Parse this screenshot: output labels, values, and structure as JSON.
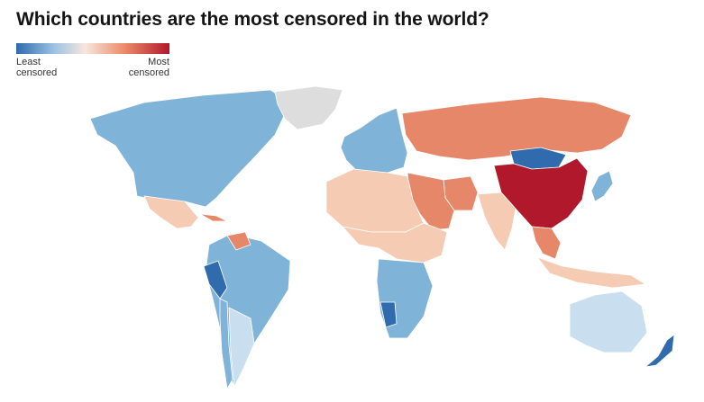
{
  "title": "Which countries are the most censored in the world?",
  "legend": {
    "low_label": "Least\ncensored",
    "high_label": "Most\ncensored",
    "colors": [
      "#2f6bad",
      "#9cc3e4",
      "#f7e6de",
      "#ec8d6b",
      "#b2182b"
    ]
  },
  "colors": {
    "very_low": "#2f6bad",
    "low": "#80b3d8",
    "low_light": "#c9dff0",
    "neutral_light": "#f5cbb4",
    "medium": "#e6876a",
    "high": "#b2182b",
    "no_data": "#dddddd"
  },
  "regions": [
    {
      "name": "North America",
      "level": "low"
    },
    {
      "name": "Greenland",
      "level": "no_data"
    },
    {
      "name": "Mexico",
      "level": "neutral_light"
    },
    {
      "name": "Cuba",
      "level": "medium"
    },
    {
      "name": "Venezuela",
      "level": "medium"
    },
    {
      "name": "South America",
      "level": "low"
    },
    {
      "name": "Peru",
      "level": "very_low"
    },
    {
      "name": "Chile",
      "level": "low"
    },
    {
      "name": "Argentina",
      "level": "low_light"
    },
    {
      "name": "Europe",
      "level": "low"
    },
    {
      "name": "Russia",
      "level": "medium"
    },
    {
      "name": "Mongolia",
      "level": "very_low"
    },
    {
      "name": "China",
      "level": "high"
    },
    {
      "name": "Iran",
      "level": "medium"
    },
    {
      "name": "Middle East",
      "level": "medium"
    },
    {
      "name": "India",
      "level": "neutral_light"
    },
    {
      "name": "North Africa",
      "level": "neutral_light"
    },
    {
      "name": "Central Africa",
      "level": "neutral_light"
    },
    {
      "name": "Southern Africa",
      "level": "low"
    },
    {
      "name": "Namibia",
      "level": "very_low"
    },
    {
      "name": "Southeast Asia",
      "level": "medium"
    },
    {
      "name": "Indonesia",
      "level": "neutral_light"
    },
    {
      "name": "Australia",
      "level": "low_light"
    },
    {
      "name": "New Zealand",
      "level": "very_low"
    },
    {
      "name": "Japan",
      "level": "low"
    }
  ]
}
